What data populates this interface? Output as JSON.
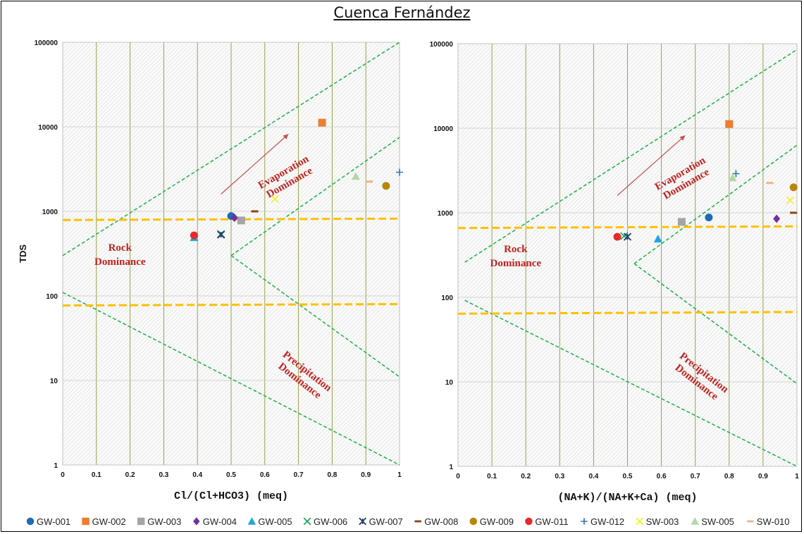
{
  "title": "Cuenca Fernández",
  "colors": {
    "GW-001": "#1f6bb3",
    "GW-002": "#ed7d31",
    "GW-003": "#a5a5a5",
    "GW-004": "#7030a0",
    "GW-005": "#1ea5e0",
    "GW-006": "#1aa35a",
    "GW-007": "#1f3e6b",
    "GW-008": "#8b4513",
    "GW-009": "#b8860b",
    "GW-011": "#e52a2a",
    "GW-012": "#2e75b6",
    "SW-003": "#f4f01c",
    "SW-005": "#b5d6a7",
    "SW-010": "#f4b183",
    "boundary": "#1fb04b",
    "threshold": "#ffc000",
    "zone_text": "#c0221f"
  },
  "legend": [
    {
      "name": "GW-001",
      "marker": "circle"
    },
    {
      "name": "GW-002",
      "marker": "square"
    },
    {
      "name": "GW-003",
      "marker": "square"
    },
    {
      "name": "GW-004",
      "marker": "diamond"
    },
    {
      "name": "GW-005",
      "marker": "triangle"
    },
    {
      "name": "GW-006",
      "marker": "x"
    },
    {
      "name": "GW-007",
      "marker": "star"
    },
    {
      "name": "GW-008",
      "marker": "dash"
    },
    {
      "name": "GW-009",
      "marker": "circle"
    },
    {
      "name": "GW-011",
      "marker": "circle"
    },
    {
      "name": "GW-012",
      "marker": "plus"
    },
    {
      "name": "SW-003",
      "marker": "x"
    },
    {
      "name": "SW-005",
      "marker": "triangle"
    },
    {
      "name": "SW-010",
      "marker": "dash"
    }
  ],
  "chart_data": [
    {
      "type": "scatter",
      "xlabel": "Cl/(Cl+HCO3)  (meq)",
      "ylabel": "TDS",
      "xlim": [
        0,
        1
      ],
      "ylim": [
        1,
        100000
      ],
      "yscale": "log",
      "xticks": [
        "0",
        "0.1",
        "0.2",
        "0.3",
        "0.4",
        "0.5",
        "0.6",
        "0.7",
        "0.8",
        "0.9",
        "1"
      ],
      "yticks": [
        "1",
        "10",
        "100",
        "1000",
        "10000",
        "100000"
      ],
      "grid": true,
      "points": [
        {
          "series": "GW-001",
          "x": 0.5,
          "y": 880
        },
        {
          "series": "GW-002",
          "x": 0.77,
          "y": 11200
        },
        {
          "series": "GW-003",
          "x": 0.53,
          "y": 780
        },
        {
          "series": "GW-004",
          "x": 0.51,
          "y": 840
        },
        {
          "series": "GW-005",
          "x": 0.39,
          "y": 490
        },
        {
          "series": "GW-006",
          "x": 0.47,
          "y": 540
        },
        {
          "series": "GW-007",
          "x": 0.47,
          "y": 530
        },
        {
          "series": "GW-008",
          "x": 0.57,
          "y": 1000
        },
        {
          "series": "GW-009",
          "x": 0.96,
          "y": 2000
        },
        {
          "series": "GW-011",
          "x": 0.39,
          "y": 520
        },
        {
          "series": "GW-012",
          "x": 1.0,
          "y": 2900
        },
        {
          "series": "SW-003",
          "x": 0.63,
          "y": 1400
        },
        {
          "series": "SW-005",
          "x": 0.87,
          "y": 2600
        },
        {
          "series": "SW-010",
          "x": 0.91,
          "y": 2250
        }
      ],
      "boundaries": [
        [
          [
            0,
            300
          ],
          [
            1,
            100000
          ]
        ],
        [
          [
            0.5,
            300
          ],
          [
            1,
            7500
          ]
        ],
        [
          [
            0.5,
            300
          ],
          [
            1,
            11
          ]
        ],
        [
          [
            0,
            110
          ],
          [
            1,
            1
          ]
        ]
      ],
      "thresholds": [
        {
          "y0": 790,
          "y1": 820
        },
        {
          "y0": 77,
          "y1": 80
        }
      ],
      "annotations": {
        "evaporation": [
          "Evaporation",
          "Dominance"
        ],
        "rock": [
          "Rock",
          "Dominance"
        ],
        "precipitation": [
          "Precipitation",
          "Dominance"
        ]
      }
    },
    {
      "type": "scatter",
      "xlabel": "(NA+K)/(NA+K+Ca)  (meq)",
      "ylabel": "",
      "xlim": [
        0,
        1
      ],
      "ylim": [
        1,
        100000
      ],
      "yscale": "log",
      "xticks": [
        "0",
        "0.1",
        "0.2",
        "0.3",
        "0.4",
        "0.5",
        "0.6",
        "0.7",
        "0.8",
        "0.9",
        "1"
      ],
      "yticks": [
        "1",
        "10",
        "100",
        "1000",
        "10000",
        "100000"
      ],
      "grid": true,
      "points": [
        {
          "series": "GW-001",
          "x": 0.74,
          "y": 880
        },
        {
          "series": "GW-002",
          "x": 0.8,
          "y": 11200
        },
        {
          "series": "GW-003",
          "x": 0.66,
          "y": 780
        },
        {
          "series": "GW-004",
          "x": 0.94,
          "y": 850
        },
        {
          "series": "GW-005",
          "x": 0.59,
          "y": 490
        },
        {
          "series": "GW-006",
          "x": 0.49,
          "y": 530
        },
        {
          "series": "GW-007",
          "x": 0.5,
          "y": 520
        },
        {
          "series": "GW-008",
          "x": 0.99,
          "y": 1000
        },
        {
          "series": "GW-009",
          "x": 0.99,
          "y": 2000
        },
        {
          "series": "GW-011",
          "x": 0.47,
          "y": 520
        },
        {
          "series": "GW-012",
          "x": 0.82,
          "y": 2900
        },
        {
          "series": "SW-003",
          "x": 0.98,
          "y": 1400
        },
        {
          "series": "SW-005",
          "x": 0.81,
          "y": 2600
        },
        {
          "series": "SW-010",
          "x": 0.92,
          "y": 2250
        }
      ],
      "boundaries": [
        [
          [
            0.02,
            260
          ],
          [
            1,
            85000
          ]
        ],
        [
          [
            0.52,
            250
          ],
          [
            1,
            6300
          ]
        ],
        [
          [
            0.52,
            250
          ],
          [
            1,
            9.5
          ]
        ],
        [
          [
            0.02,
            92
          ],
          [
            1,
            1
          ]
        ]
      ],
      "thresholds": [
        {
          "y0": 660,
          "y1": 690
        },
        {
          "y0": 64,
          "y1": 67
        }
      ],
      "annotations": {
        "evaporation": [
          "Evaporation",
          "Dominance"
        ],
        "rock": [
          "Rock",
          "Dominance"
        ],
        "precipitation": [
          "Precipitation",
          "Dominance"
        ]
      }
    }
  ]
}
